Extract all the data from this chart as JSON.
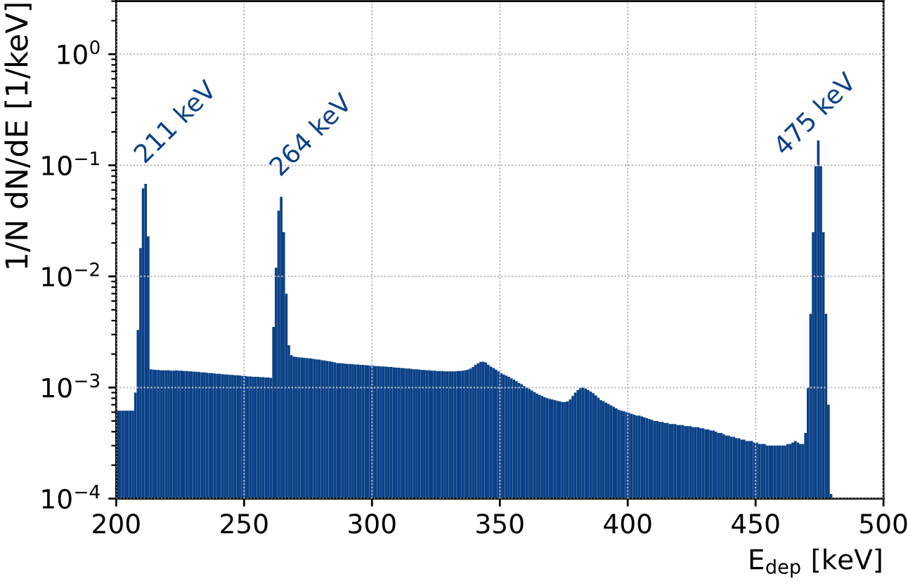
{
  "chart_data": {
    "type": "histogram",
    "bins": [
      200,
      201,
      202,
      203,
      204,
      205,
      206,
      207,
      208,
      209,
      210,
      211,
      212,
      213,
      214,
      215,
      216,
      217,
      218,
      219,
      220,
      221,
      222,
      223,
      224,
      225,
      226,
      227,
      228,
      229,
      230,
      231,
      232,
      233,
      234,
      235,
      236,
      237,
      238,
      239,
      240,
      241,
      242,
      243,
      244,
      245,
      246,
      247,
      248,
      249,
      250,
      251,
      252,
      253,
      254,
      255,
      256,
      257,
      258,
      259,
      260,
      261,
      262,
      263,
      264,
      265,
      266,
      267,
      268,
      269,
      270,
      271,
      272,
      273,
      274,
      275,
      276,
      277,
      278,
      279,
      280,
      281,
      282,
      283,
      284,
      285,
      286,
      287,
      288,
      289,
      290,
      291,
      292,
      293,
      294,
      295,
      296,
      297,
      298,
      299,
      300,
      301,
      302,
      303,
      304,
      305,
      306,
      307,
      308,
      309,
      310,
      311,
      312,
      313,
      314,
      315,
      316,
      317,
      318,
      319,
      320,
      321,
      322,
      323,
      324,
      325,
      326,
      327,
      328,
      329,
      330,
      331,
      332,
      333,
      334,
      335,
      336,
      337,
      338,
      339,
      340,
      341,
      342,
      343,
      344,
      345,
      346,
      347,
      348,
      349,
      350,
      351,
      352,
      353,
      354,
      355,
      356,
      357,
      358,
      359,
      360,
      361,
      362,
      363,
      364,
      365,
      366,
      367,
      368,
      369,
      370,
      371,
      372,
      373,
      374,
      375,
      376,
      377,
      378,
      379,
      380,
      381,
      382,
      383,
      384,
      385,
      386,
      387,
      388,
      389,
      390,
      391,
      392,
      393,
      394,
      395,
      396,
      397,
      398,
      399,
      400,
      401,
      402,
      403,
      404,
      405,
      406,
      407,
      408,
      409,
      410,
      411,
      412,
      413,
      414,
      415,
      416,
      417,
      418,
      419,
      420,
      421,
      422,
      423,
      424,
      425,
      426,
      427,
      428,
      429,
      430,
      431,
      432,
      433,
      434,
      435,
      436,
      437,
      438,
      439,
      440,
      441,
      442,
      443,
      444,
      445,
      446,
      447,
      448,
      449,
      450,
      451,
      452,
      453,
      454,
      455,
      456,
      457,
      458,
      459,
      460,
      461,
      462,
      463,
      464,
      465,
      466,
      467,
      468,
      469,
      470,
      471,
      472,
      473,
      474,
      475,
      476,
      477,
      478,
      479,
      480
    ],
    "values": [
      0.00062,
      0.00062,
      0.00062,
      0.00062,
      0.00062,
      0.00062,
      0.00062,
      0.0009,
      0.0033,
      0.018,
      0.062,
      0.068,
      0.023,
      0.00146,
      0.00145,
      0.00144,
      0.00144,
      0.00143,
      0.00143,
      0.00143,
      0.00143,
      0.00142,
      0.00142,
      0.00143,
      0.00142,
      0.00142,
      0.00141,
      0.00141,
      0.0014,
      0.0014,
      0.00139,
      0.00139,
      0.00138,
      0.00137,
      0.00137,
      0.00136,
      0.00135,
      0.00135,
      0.00134,
      0.00133,
      0.00133,
      0.00132,
      0.00131,
      0.00131,
      0.0013,
      0.0013,
      0.00129,
      0.00129,
      0.00128,
      0.00127,
      0.00127,
      0.00126,
      0.00126,
      0.00125,
      0.00125,
      0.00125,
      0.00124,
      0.00124,
      0.00123,
      0.00123,
      0.00122,
      0.0035,
      0.012,
      0.039,
      0.052,
      0.025,
      0.007,
      0.0024,
      0.00195,
      0.0019,
      0.00188,
      0.00187,
      0.00186,
      0.00185,
      0.00184,
      0.00183,
      0.00182,
      0.0018,
      0.00179,
      0.00178,
      0.00176,
      0.00175,
      0.00173,
      0.00172,
      0.0017,
      0.00168,
      0.00166,
      0.00166,
      0.00165,
      0.00164,
      0.00163,
      0.00163,
      0.00162,
      0.00161,
      0.00161,
      0.0016,
      0.0016,
      0.00159,
      0.00158,
      0.00157,
      0.00157,
      0.00156,
      0.00156,
      0.00155,
      0.00155,
      0.00154,
      0.00153,
      0.00153,
      0.00152,
      0.00151,
      0.00151,
      0.0015,
      0.00149,
      0.00148,
      0.00148,
      0.00147,
      0.00146,
      0.00146,
      0.00145,
      0.00144,
      0.00144,
      0.00143,
      0.00143,
      0.00142,
      0.00142,
      0.00141,
      0.00141,
      0.00141,
      0.0014,
      0.0014,
      0.0014,
      0.0014,
      0.0014,
      0.00141,
      0.00141,
      0.00142,
      0.00143,
      0.00145,
      0.00148,
      0.00153,
      0.0016,
      0.00165,
      0.0017,
      0.00171,
      0.00168,
      0.0016,
      0.00154,
      0.0015,
      0.00145,
      0.0014,
      0.00135,
      0.00131,
      0.00128,
      0.00125,
      0.00121,
      0.00118,
      0.00114,
      0.0011,
      0.00107,
      0.00103,
      0.001,
      0.00097,
      0.00094,
      0.00091,
      0.00088,
      0.00086,
      0.00084,
      0.00082,
      0.0008,
      0.00079,
      0.00078,
      0.00077,
      0.00076,
      0.00075,
      0.00074,
      0.00074,
      0.00075,
      0.00078,
      0.00084,
      0.0009,
      0.00095,
      0.00099,
      0.001,
      0.00098,
      0.00095,
      0.00092,
      0.00089,
      0.00085,
      0.00081,
      0.00077,
      0.00075,
      0.00073,
      0.00071,
      0.00069,
      0.00067,
      0.00065,
      0.00063,
      0.00062,
      0.00061,
      0.0006,
      0.00059,
      0.00058,
      0.00057,
      0.00056,
      0.00056,
      0.00055,
      0.00054,
      0.00053,
      0.00052,
      0.00051,
      0.0005,
      0.0005,
      0.00049,
      0.00049,
      0.00048,
      0.00048,
      0.00047,
      0.00047,
      0.00047,
      0.00046,
      0.00046,
      0.00046,
      0.00045,
      0.00045,
      0.00045,
      0.00044,
      0.00044,
      0.00044,
      0.00043,
      0.00043,
      0.00042,
      0.00042,
      0.00041,
      0.00041,
      0.0004,
      0.00039,
      0.00039,
      0.00038,
      0.00037,
      0.00037,
      0.00036,
      0.00036,
      0.00035,
      0.00035,
      0.00034,
      0.00034,
      0.00033,
      0.00033,
      0.00033,
      0.00032,
      0.00032,
      0.00031,
      0.00031,
      0.00031,
      0.0003,
      0.0003,
      0.0003,
      0.0003,
      0.0003,
      0.0003,
      0.0003,
      0.0003,
      0.00031,
      0.00031,
      0.00032,
      0.00033,
      0.00032,
      0.00031,
      0.00031,
      0.00039,
      0.001,
      0.0046,
      0.025,
      0.098,
      0.167,
      0.098,
      0.025,
      0.0046,
      0.0007,
      0.00011
    ],
    "color": "#0a4086",
    "xlabel": "E$_{dep}$ [keV]",
    "ylabel": "1/N dN/dE [1/keV]",
    "xlim": [
      200,
      500
    ],
    "xticks": [
      200,
      250,
      300,
      350,
      400,
      450,
      500
    ],
    "ylim": [
      0.0001,
      3
    ],
    "yticks": [
      {
        "value": 0.0001,
        "label": "10$^{−4}$"
      },
      {
        "value": 0.001,
        "label": "10$^{−3}$"
      },
      {
        "value": 0.01,
        "label": "10$^{−2}$"
      },
      {
        "value": 0.1,
        "label": "10$^{−1}$"
      },
      {
        "value": 1,
        "label": "10$^{0}$"
      }
    ],
    "log": true,
    "grid": true,
    "annotations": [
      {
        "text": "211 keV",
        "x": 211,
        "y": 0.068
      },
      {
        "text": "264 keV",
        "x": 264,
        "y": 0.052
      },
      {
        "text": "475 keV",
        "x": 475,
        "y": 0.167
      }
    ]
  }
}
